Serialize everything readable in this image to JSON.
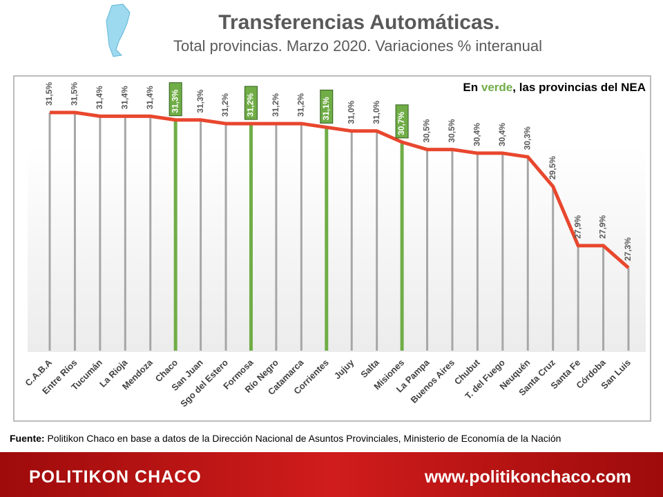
{
  "chart_data": {
    "type": "line",
    "title": "Transferencias Automáticas.",
    "subtitle": "Total provincias. Marzo 2020. Variaciones % interanual",
    "annotation": [
      "En ",
      "verde",
      ", las provincias del NEA"
    ],
    "source": [
      "Fuente:",
      " Politikon Chaco en base a datos de la Dirección Nacional de Asuntos Provinciales, Ministerio de Economía de la Nación"
    ],
    "footer": [
      "POLITIKON CHACO",
      "www.politikonchaco.com"
    ],
    "categories": [
      "C.A.B.A",
      "Entre Ríos",
      "Tucumán",
      "La Rioja",
      "Mendoza",
      "Chaco",
      "San Juan",
      "Sgo del Estero",
      "Formosa",
      "Río Negro",
      "Catamarca",
      "Corrientes",
      "Jujuy",
      "Salta",
      "Misiones",
      "La Pampa",
      "Buenos Aires",
      "Chubut",
      "T. del Fuego",
      "Neuquén",
      "Santa Cruz",
      "Santa Fe",
      "Córdoba",
      "San Luis"
    ],
    "values": [
      31.5,
      31.5,
      31.4,
      31.4,
      31.4,
      31.3,
      31.3,
      31.2,
      31.2,
      31.2,
      31.2,
      31.1,
      31.0,
      31.0,
      30.7,
      30.5,
      30.5,
      30.4,
      30.4,
      30.3,
      29.5,
      27.9,
      27.9,
      27.3
    ],
    "value_labels": [
      "31,5%",
      "31,5%",
      "31,4%",
      "31,4%",
      "31,4%",
      "31,3%",
      "31,3%",
      "31,2%",
      "31,2%",
      "31,2%",
      "31,2%",
      "31,1%",
      "31,0%",
      "31,0%",
      "30,7%",
      "30,5%",
      "30,5%",
      "30,4%",
      "30,4%",
      "30,3%",
      "29,5%",
      "27,9%",
      "27,9%",
      "27,3%"
    ],
    "line_color": "#e8472e",
    "drop_colors": [
      "#a6a6a6",
      "#a6a6a6",
      "#a6a6a6",
      "#a6a6a6",
      "#a6a6a6",
      "#70ad47",
      "#a6a6a6",
      "#a6a6a6",
      "#70ad47",
      "#a6a6a6",
      "#a6a6a6",
      "#70ad47",
      "#a6a6a6",
      "#a6a6a6",
      "#70ad47",
      "#a6a6a6",
      "#a6a6a6",
      "#a6a6a6",
      "#a6a6a6",
      "#a6a6a6",
      "#a6a6a6",
      "#a6a6a6",
      "#a6a6a6",
      "#a6a6a6"
    ]
  }
}
